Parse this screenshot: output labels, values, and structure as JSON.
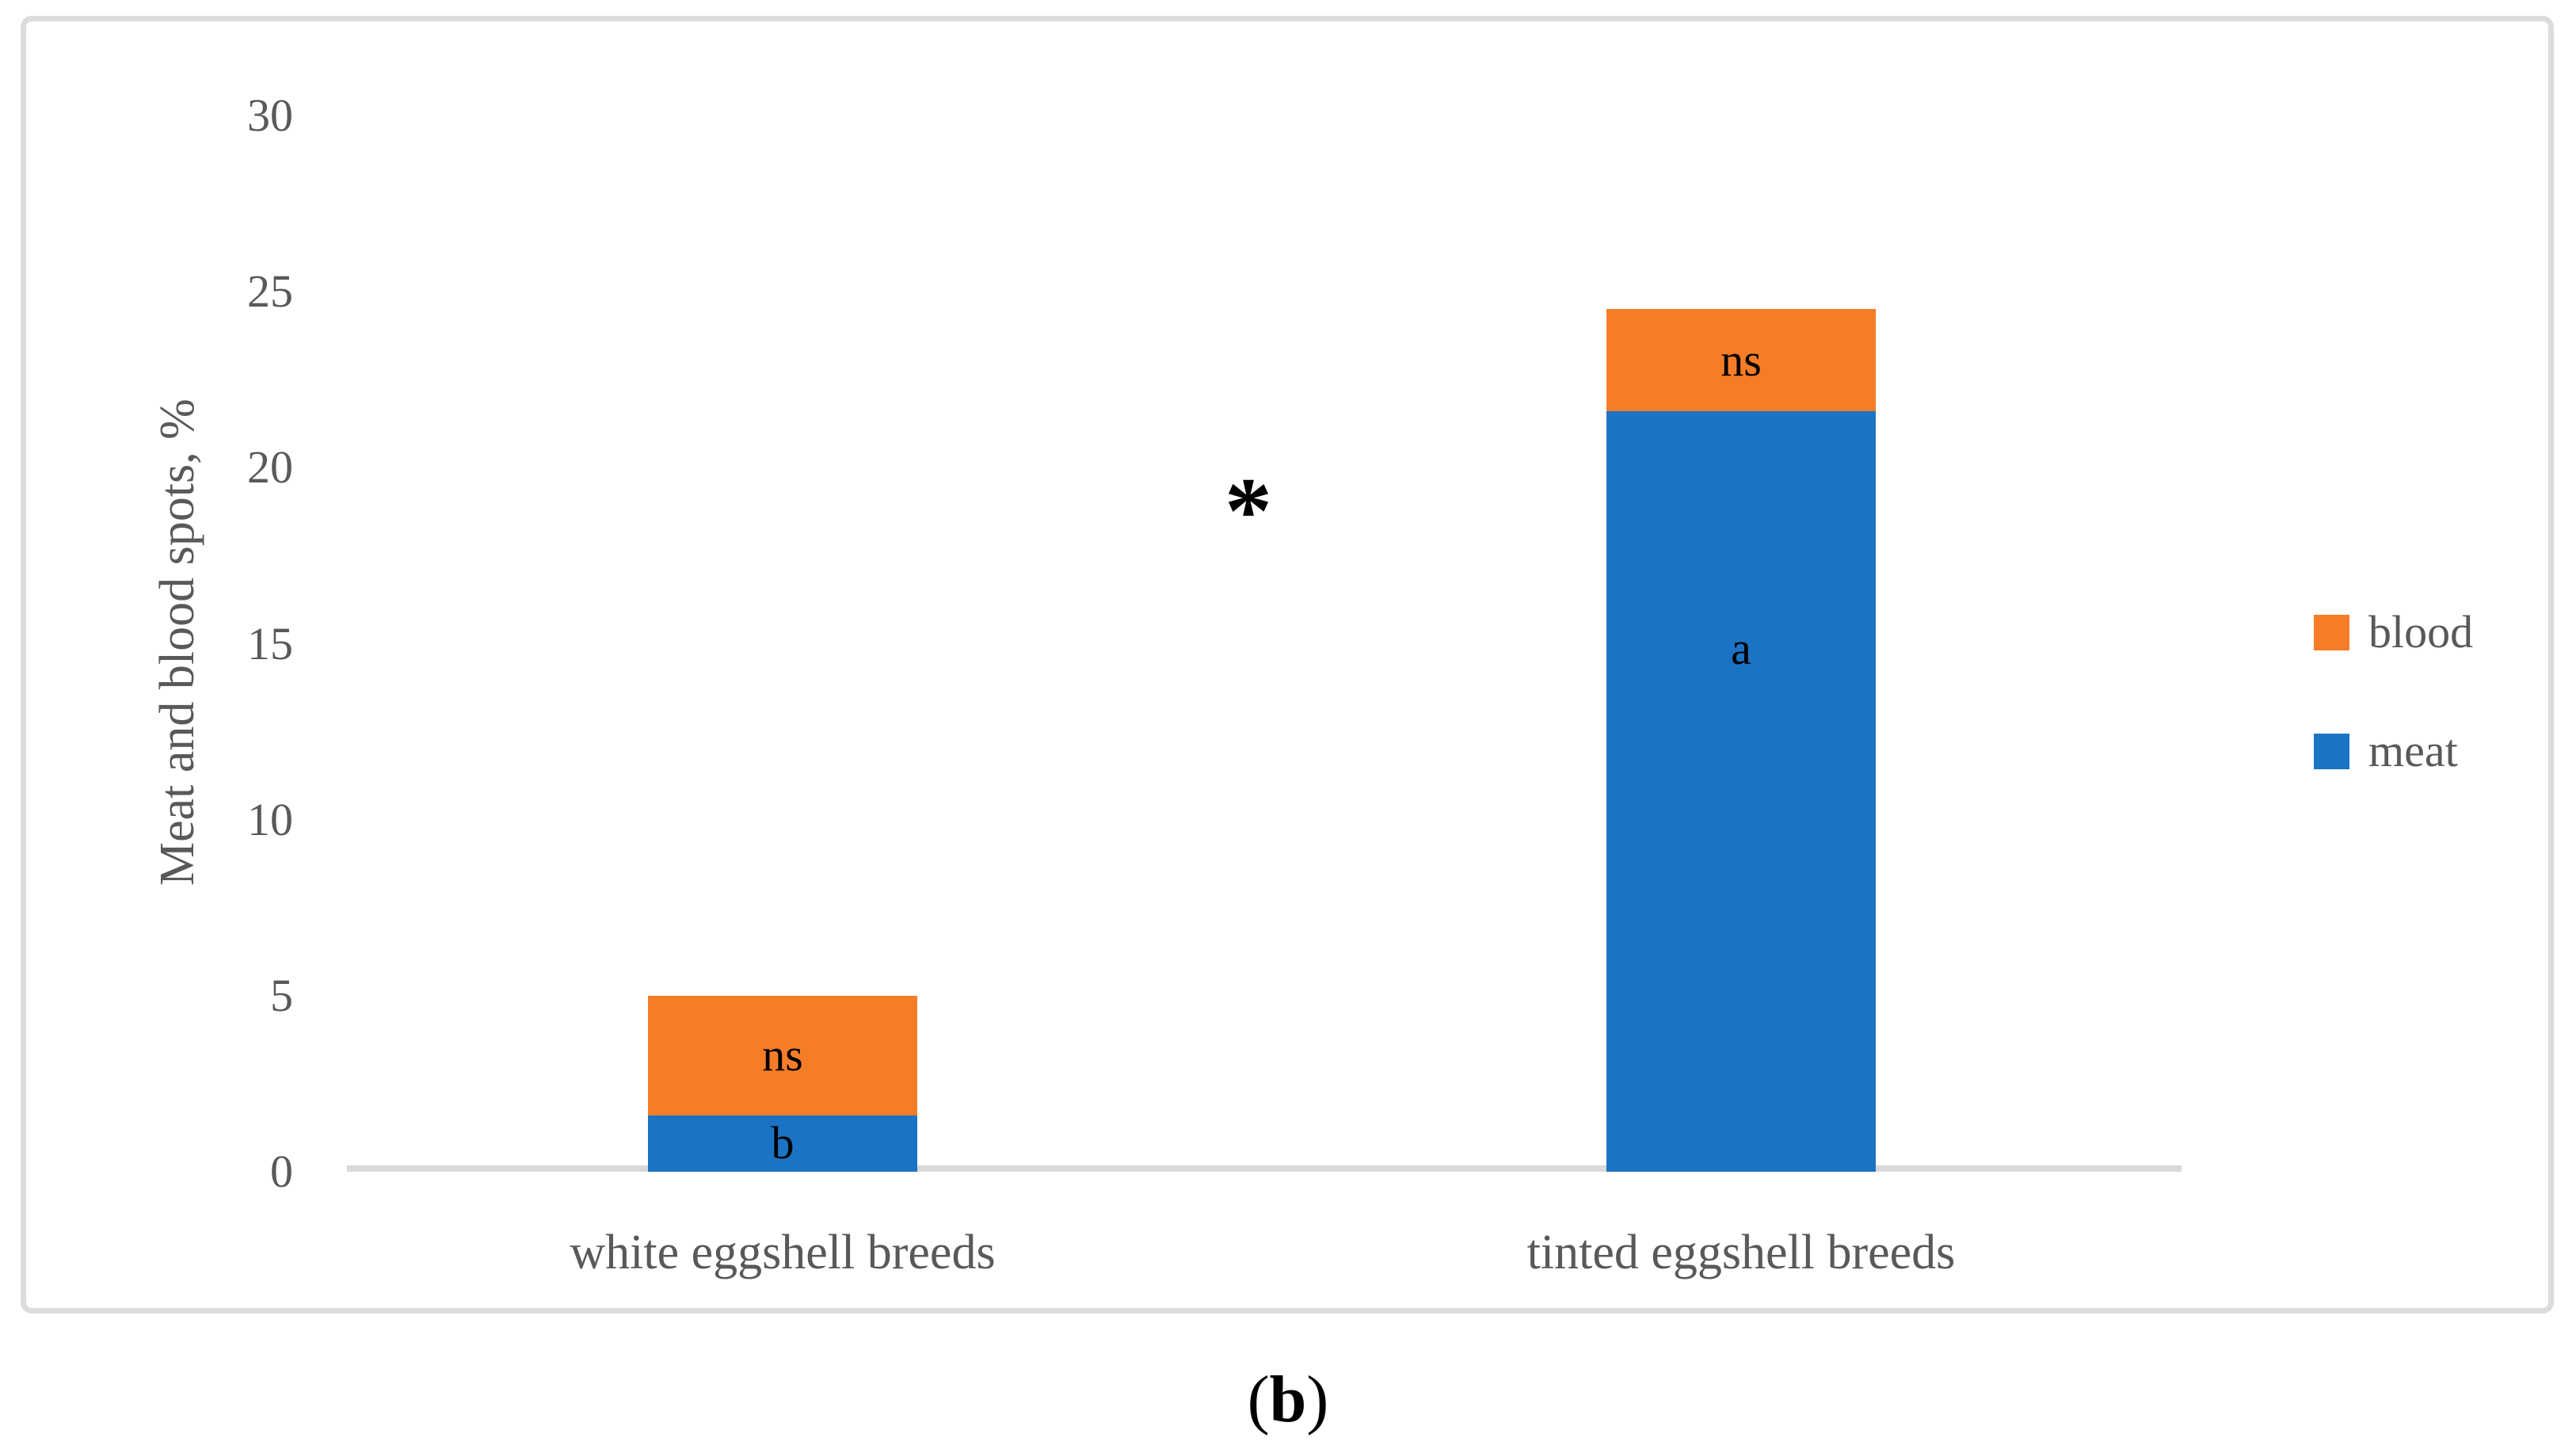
{
  "figure": {
    "caption": {
      "open_paren": "(",
      "letter": "b",
      "close_paren": ")"
    }
  },
  "chart_data": {
    "type": "bar",
    "stacked": true,
    "title": "",
    "xlabel": "",
    "ylabel": "Meat and blood spots, %",
    "ylim": [
      0,
      30
    ],
    "yticks": [
      0,
      5,
      10,
      15,
      20,
      25,
      30
    ],
    "grid": false,
    "legend_position": "right",
    "categories": [
      "white eggshell breeds",
      "tinted eggshell breeds"
    ],
    "series": [
      {
        "name": "meat",
        "color": "#1b73c5",
        "values": [
          1.6,
          21.6
        ],
        "labels": [
          "b",
          "a"
        ]
      },
      {
        "name": "blood",
        "color": "#f67d28",
        "values": [
          3.4,
          2.9
        ],
        "labels": [
          "ns",
          "ns"
        ]
      }
    ],
    "totals": [
      5.0,
      24.5
    ],
    "legend": [
      {
        "label": "blood",
        "color": "#f67d28"
      },
      {
        "label": "meat",
        "color": "#1b73c5"
      }
    ],
    "annotation": {
      "text": "*",
      "y": 19,
      "position": "between categories"
    }
  },
  "colors": {
    "bar_blue": "#1b73c5",
    "bar_orange": "#f67d28",
    "axis_line": "#d9d9d9",
    "frame_border": "#dcdcdc",
    "text_gray": "#595959",
    "label_black": "#000000"
  }
}
